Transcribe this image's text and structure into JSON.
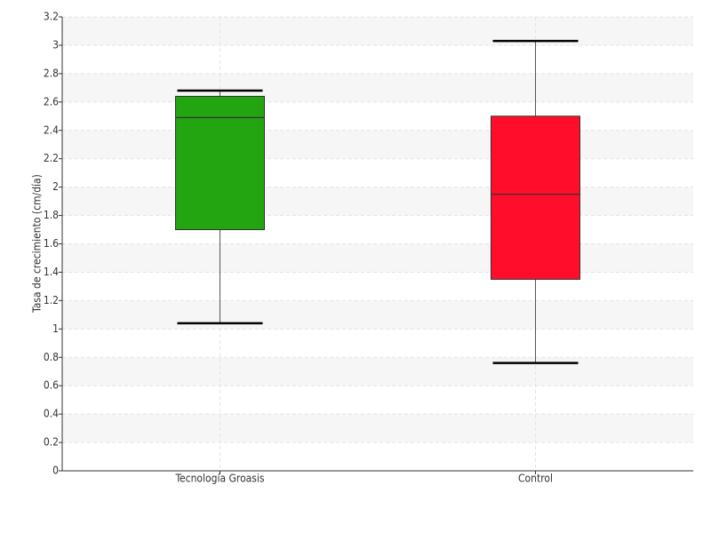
{
  "chart_data": {
    "type": "box",
    "y_label": "Tasa de crecimiento (cm/día)",
    "categories": [
      "Tecnología Groasis",
      "Control"
    ],
    "boxes": [
      {
        "color": "#22a511",
        "low": 1.04,
        "q1": 1.7,
        "median": 2.49,
        "q3": 2.64,
        "high": 2.68
      },
      {
        "color": "#ff0d2b",
        "low": 0.76,
        "q1": 1.35,
        "median": 1.95,
        "q3": 2.5,
        "high": 3.03
      }
    ],
    "ylim": [
      0,
      3.2
    ],
    "yticks": [
      0,
      0.2,
      0.4,
      0.6,
      0.8,
      1,
      1.2,
      1.4,
      1.6,
      1.8,
      2,
      2.2,
      2.4,
      2.6,
      2.8,
      3,
      3.2
    ],
    "grid": true
  }
}
